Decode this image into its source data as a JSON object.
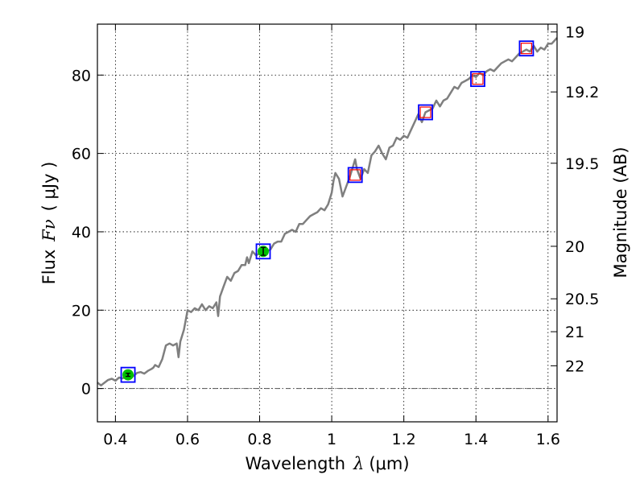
{
  "chart_data": {
    "type": "line",
    "xlabel_text": "Wavelength",
    "xlabel_symbol": "λ",
    "xlabel_unit": "(μm)",
    "ylabel_text": "Flux",
    "ylabel_symbol": "Fν",
    "ylabel_unit": "( μJy )",
    "y2label": "Magnitude (AB)",
    "xlim": [
      0.35,
      1.625
    ],
    "ylim": [
      -8.5,
      93
    ],
    "grid": true,
    "x_ticks": [
      0.4,
      0.6,
      0.8,
      1.0,
      1.2,
      1.4,
      1.6
    ],
    "x_tick_labels": [
      "0.4",
      "0.6",
      "0.8",
      "1",
      "1.2",
      "1.4",
      "1.6"
    ],
    "y_ticks": [
      0,
      20,
      40,
      60,
      80
    ],
    "y_tick_labels": [
      "0",
      "20",
      "40",
      "60",
      "80"
    ],
    "y2_ticks": [
      {
        "label": "19",
        "flux": 91.0
      },
      {
        "label": "19.2",
        "flux": 75.7
      },
      {
        "label": "19.5",
        "flux": 57.5
      },
      {
        "label": "20",
        "flux": 36.3
      },
      {
        "label": "20.5",
        "flux": 22.9
      },
      {
        "label": "21",
        "flux": 14.5
      },
      {
        "label": "22",
        "flux": 5.8
      }
    ],
    "colors": {
      "spectrum": "#7f7f7f",
      "box": "#0000ff",
      "model": "#ff0000",
      "phot": "#00bf00",
      "grid": "#000000"
    },
    "series": [
      {
        "name": "spectrum",
        "x": [
          0.35,
          0.36,
          0.37,
          0.38,
          0.39,
          0.4,
          0.41,
          0.42,
          0.43,
          0.44,
          0.45,
          0.46,
          0.47,
          0.48,
          0.49,
          0.5,
          0.505,
          0.51,
          0.52,
          0.53,
          0.54,
          0.55,
          0.56,
          0.57,
          0.575,
          0.58,
          0.59,
          0.6,
          0.61,
          0.62,
          0.63,
          0.64,
          0.65,
          0.66,
          0.67,
          0.68,
          0.685,
          0.69,
          0.7,
          0.71,
          0.72,
          0.73,
          0.74,
          0.75,
          0.76,
          0.765,
          0.77,
          0.78,
          0.79,
          0.8,
          0.81,
          0.82,
          0.83,
          0.84,
          0.85,
          0.86,
          0.87,
          0.88,
          0.89,
          0.9,
          0.91,
          0.92,
          0.93,
          0.94,
          0.95,
          0.96,
          0.97,
          0.98,
          0.99,
          1.0,
          1.005,
          1.01,
          1.02,
          1.03,
          1.04,
          1.05,
          1.06,
          1.065,
          1.07,
          1.08,
          1.09,
          1.1,
          1.11,
          1.12,
          1.13,
          1.14,
          1.15,
          1.16,
          1.17,
          1.18,
          1.19,
          1.2,
          1.21,
          1.22,
          1.23,
          1.24,
          1.25,
          1.26,
          1.27,
          1.28,
          1.29,
          1.3,
          1.31,
          1.32,
          1.33,
          1.34,
          1.35,
          1.36,
          1.37,
          1.38,
          1.39,
          1.4,
          1.41,
          1.42,
          1.43,
          1.44,
          1.45,
          1.46,
          1.47,
          1.48,
          1.49,
          1.5,
          1.51,
          1.52,
          1.53,
          1.54,
          1.55,
          1.56,
          1.57,
          1.58,
          1.59,
          1.6,
          1.61,
          1.625
        ],
        "y": [
          1.5,
          0.8,
          1.5,
          2.2,
          2.5,
          2.0,
          2.8,
          2.6,
          3.0,
          3.5,
          3.2,
          4.0,
          4.2,
          3.8,
          4.5,
          5.0,
          5.3,
          6.0,
          5.5,
          7.5,
          11.0,
          11.5,
          11.0,
          11.5,
          8.0,
          12.0,
          15.0,
          20.0,
          19.5,
          20.5,
          20.0,
          21.5,
          20.0,
          21.0,
          20.5,
          22.0,
          18.5,
          23.5,
          26.0,
          28.5,
          27.5,
          29.5,
          30.0,
          31.5,
          31.5,
          33.5,
          32.0,
          35.0,
          34.0,
          34.5,
          35.5,
          35.0,
          35.5,
          37.0,
          37.5,
          37.5,
          39.5,
          40.0,
          40.5,
          40.0,
          42.0,
          42.0,
          43.0,
          44.0,
          44.5,
          45.0,
          46.0,
          45.5,
          47.0,
          50.0,
          53.0,
          55.0,
          53.5,
          49.0,
          51.5,
          54.0,
          57.0,
          58.5,
          56.0,
          53.5,
          56.0,
          55.0,
          59.5,
          60.5,
          62.0,
          60.0,
          58.5,
          61.5,
          62.0,
          64.0,
          63.5,
          64.5,
          64.0,
          66.0,
          68.0,
          70.0,
          68.0,
          70.5,
          71.0,
          71.5,
          73.5,
          72.0,
          73.5,
          74.0,
          75.5,
          77.0,
          76.5,
          78.0,
          78.5,
          79.0,
          80.0,
          79.5,
          80.5,
          80.0,
          81.0,
          81.5,
          81.0,
          82.0,
          83.0,
          83.5,
          84.0,
          83.5,
          84.5,
          85.5,
          86.0,
          86.5,
          86.0,
          87.5,
          86.0,
          87.0,
          86.5,
          88.0,
          88.0,
          89.5
        ]
      },
      {
        "name": "photometry",
        "x": [
          0.435,
          0.81
        ],
        "y": [
          3.5,
          35.0
        ],
        "yerr": [
          0.4,
          1.0
        ]
      },
      {
        "name": "model_boxes",
        "x": [
          1.065,
          1.26,
          1.405,
          1.54
        ],
        "y": [
          54.5,
          70.5,
          79.0,
          86.8
        ]
      },
      {
        "name": "filter_boxes",
        "x": [
          0.435,
          0.81,
          1.065,
          1.26,
          1.405,
          1.54
        ],
        "y": [
          3.5,
          35.0,
          54.5,
          70.5,
          79.0,
          86.8
        ]
      }
    ]
  }
}
